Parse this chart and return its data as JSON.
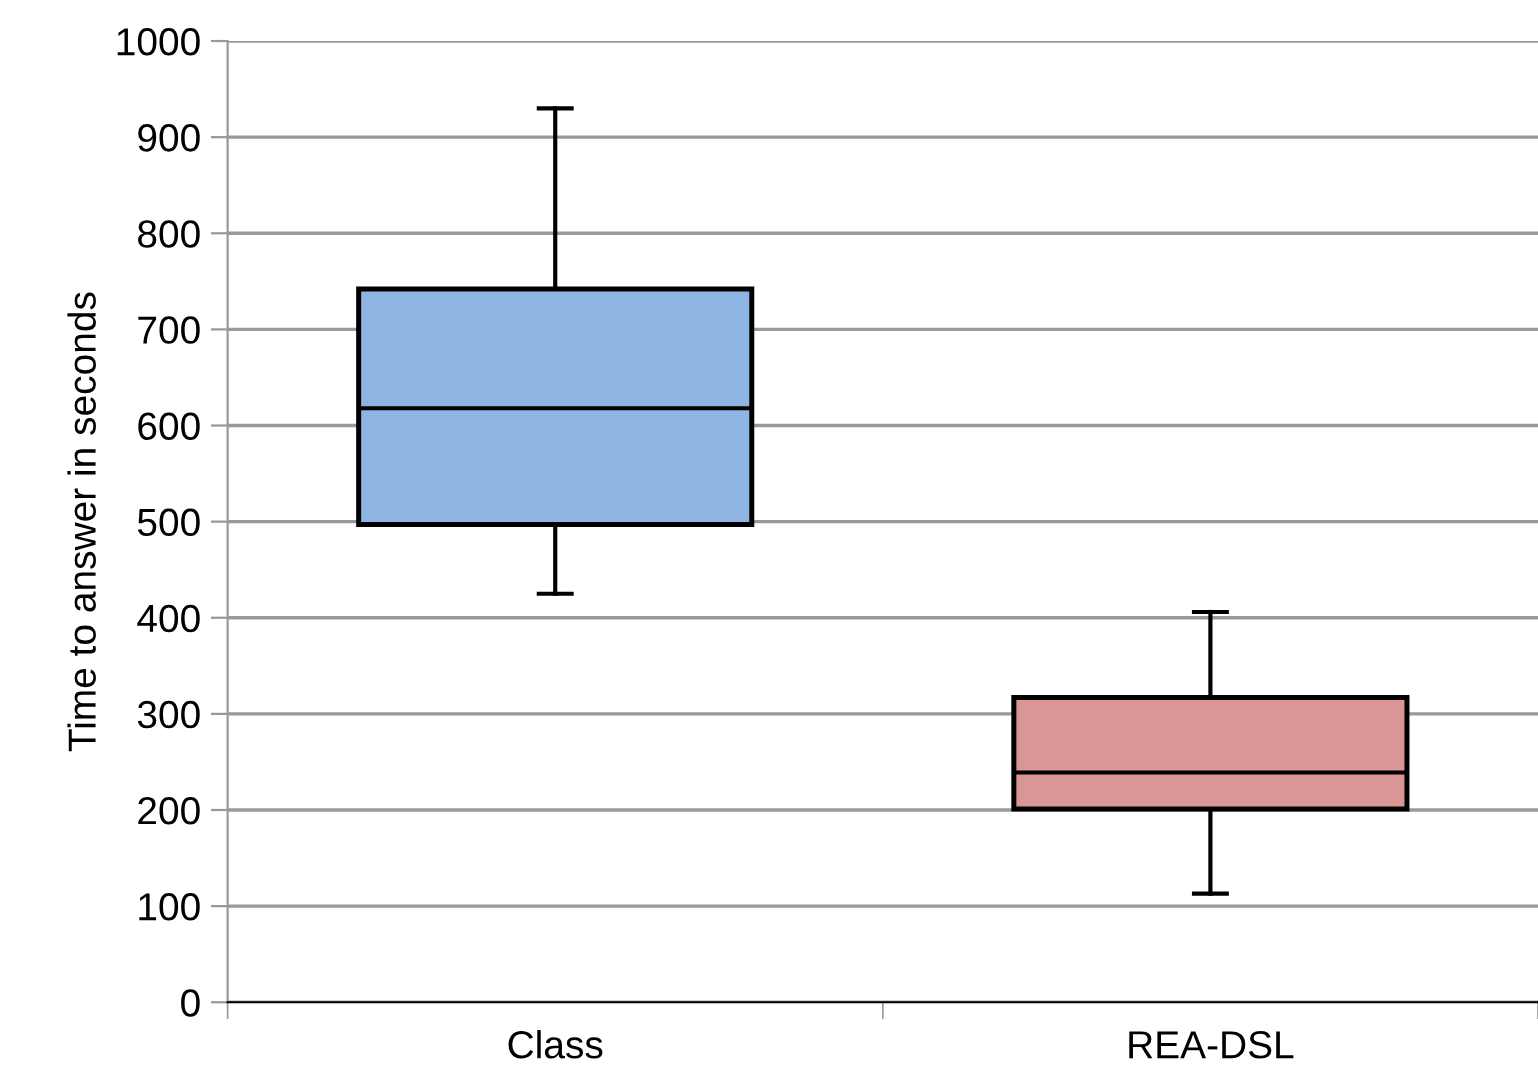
{
  "chart_data": {
    "type": "box",
    "ylabel": "Time to answer in seconds",
    "categories": [
      "Class",
      "REA-DSL"
    ],
    "boxes": [
      {
        "low": 425,
        "q1": 497,
        "median": 618,
        "q3": 742,
        "high": 930
      },
      {
        "low": 113,
        "q1": 201,
        "median": 239,
        "q3": 317,
        "high": 406
      }
    ],
    "colors": [
      "#8eb4e3",
      "#d99694"
    ],
    "ylim": [
      0,
      1000
    ],
    "yticks": [
      0,
      100,
      200,
      300,
      400,
      500,
      600,
      700,
      800,
      900,
      1000
    ],
    "grid": "y",
    "legend": false
  }
}
